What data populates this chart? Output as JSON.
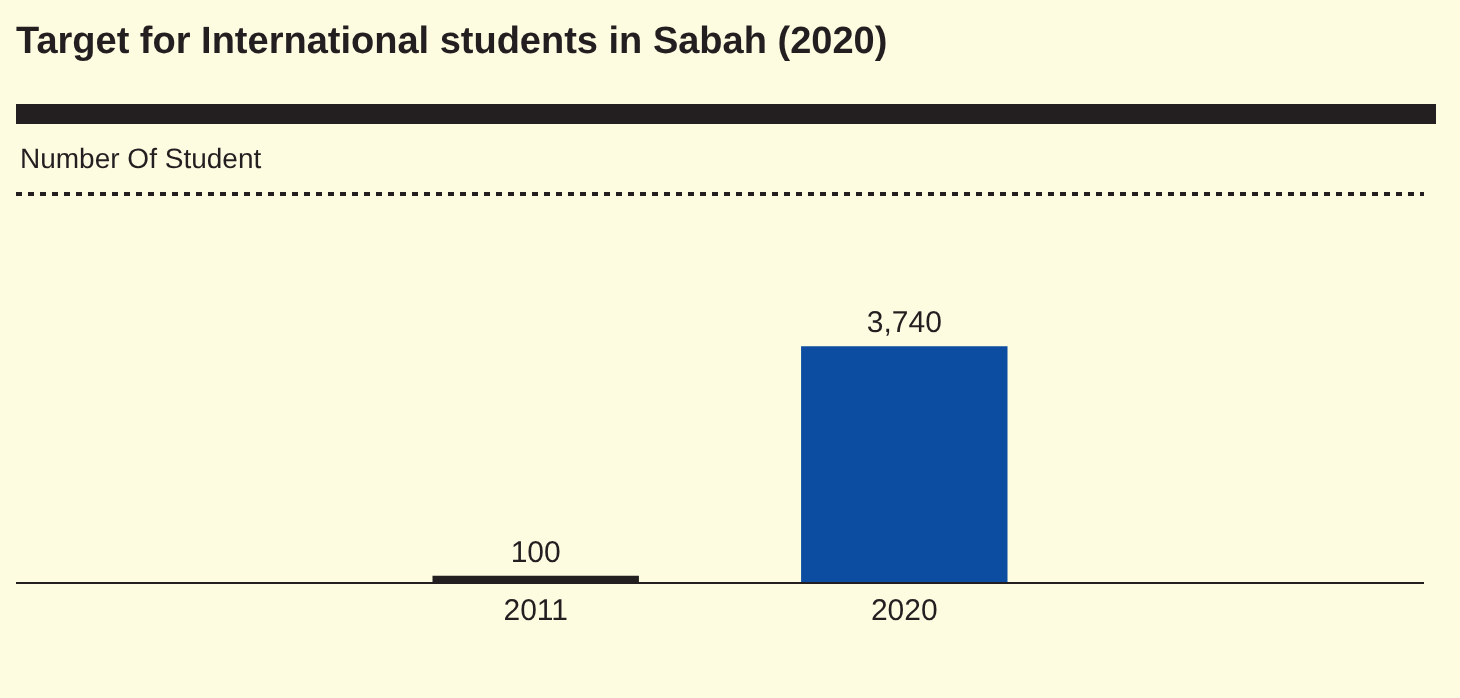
{
  "chart_data": {
    "type": "bar",
    "title": "Target for International students in Sabah (2020)",
    "annotations": [
      "Number Of Student"
    ],
    "categories": [
      "2011",
      "2020"
    ],
    "values": [
      100,
      3740
    ],
    "value_labels": [
      "100",
      "3,740"
    ],
    "colors": [
      "#231f20",
      "#0c4da2"
    ],
    "legend": false,
    "grid": false
  }
}
